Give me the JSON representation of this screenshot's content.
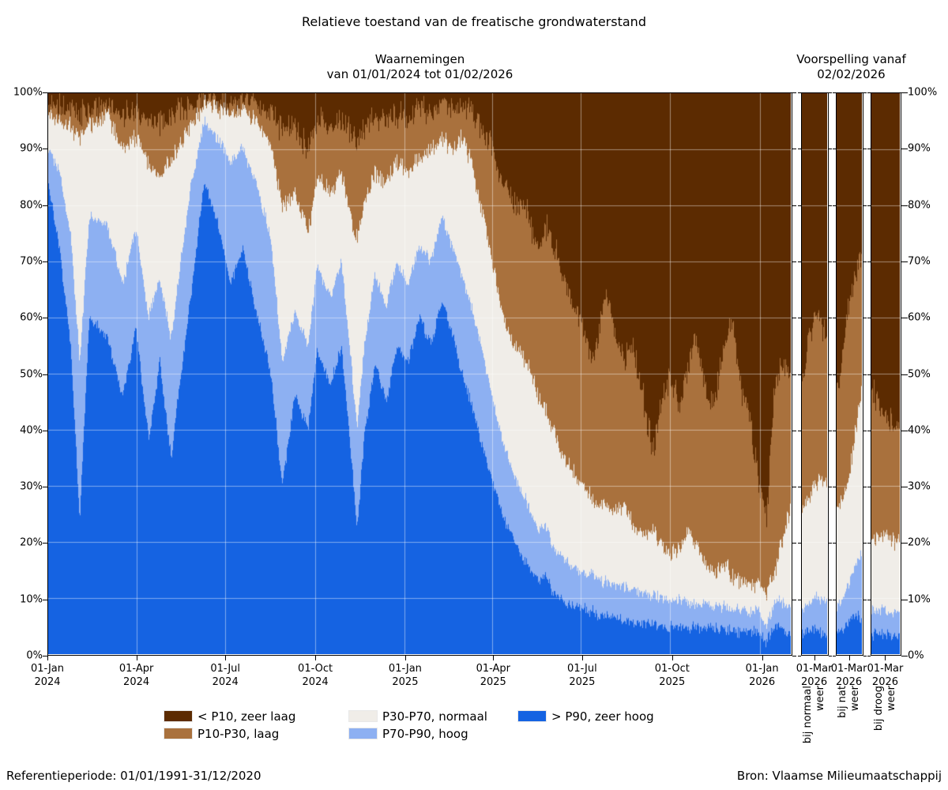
{
  "title": "Relatieve toestand van de freatische grondwaterstand",
  "headers": {
    "observations_line1": "Waarnemingen",
    "observations_line2": "van 01/01/2024 tot 01/02/2026",
    "forecast_line1": "Voorspelling vanaf",
    "forecast_line2": "02/02/2026"
  },
  "footer": {
    "left": "Referentieperiode: 01/01/1991-31/12/2020",
    "right": "Bron: Vlaamse Milieumaatschappij"
  },
  "legend": [
    {
      "label": "< P10, zeer laag",
      "color": "#5c2b01"
    },
    {
      "label": "P10-P30, laag",
      "color": "#a9713d"
    },
    {
      "label": "P30-P70, normaal",
      "color": "#f0ede8"
    },
    {
      "label": "P70-P90, hoog",
      "color": "#8db0f2"
    },
    {
      "label": "> P90, zeer hoog",
      "color": "#1563e2"
    }
  ],
  "axes": {
    "y_tick_labels": [
      "100%",
      "90%",
      "80%",
      "70%",
      "60%",
      "50%",
      "40%",
      "30%",
      "20%",
      "10%",
      "0%"
    ],
    "x_ticks_main": [
      {
        "t": 0.0,
        "line1": "01-Jan",
        "line2": "2024"
      },
      {
        "t": 0.1194,
        "line1": "01-Apr",
        "line2": "2024"
      },
      {
        "t": 0.2388,
        "line1": "01-Jul",
        "line2": "2024"
      },
      {
        "t": 0.3596,
        "line1": "01-Oct",
        "line2": "2024"
      },
      {
        "t": 0.4803,
        "line1": "01-Jan",
        "line2": "2025"
      },
      {
        "t": 0.5984,
        "line1": "01-Apr",
        "line2": "2025"
      },
      {
        "t": 0.7178,
        "line1": "01-Jul",
        "line2": "2025"
      },
      {
        "t": 0.8386,
        "line1": "01-Oct",
        "line2": "2025"
      },
      {
        "t": 0.9593,
        "line1": "01-Jan",
        "line2": "2026"
      }
    ],
    "x_tick_forecast": {
      "t": 0.474,
      "line1": "01-Mar",
      "line2": "2026"
    }
  },
  "forecast_axis_labels": [
    {
      "line1": "bij normaal",
      "line2": "weer"
    },
    {
      "line1": "bij nat",
      "line2": "weer"
    },
    {
      "line1": "bij droog",
      "line2": "weer"
    }
  ],
  "chart_data": {
    "type": "area",
    "unit": "percent of monitoring wells",
    "ylim": [
      0,
      100
    ],
    "grid": true,
    "stack_order_bottom_to_top": [
      "> P90, zeer hoog",
      "P70-P90, hoog",
      "P30-P70, normaal",
      "P10-P30, laag",
      "< P10, zeer laag"
    ],
    "stack_colors_bottom_to_top": [
      "#1563e2",
      "#8db0f2",
      "#f0ede8",
      "#a9713d",
      "#5c2b01"
    ],
    "boundaries_note": "keyframes are [t, b1, b2, b3, b4] = cumulative % tops of blue, light-blue, white, light-brown; dark brown fills b4..100; t is fraction of panel time range",
    "observations": {
      "date_range": [
        "01/01/2024",
        "01/02/2026"
      ],
      "keyframes": [
        [
          0.0,
          84,
          90,
          96,
          98
        ],
        [
          0.015,
          72,
          86,
          95,
          97.5
        ],
        [
          0.03,
          55,
          75,
          94,
          97
        ],
        [
          0.042,
          24,
          52,
          92,
          96
        ],
        [
          0.055,
          60,
          78,
          94,
          97
        ],
        [
          0.08,
          56,
          76,
          96,
          98
        ],
        [
          0.1,
          46,
          66,
          90,
          96
        ],
        [
          0.118,
          58,
          76,
          92,
          97
        ],
        [
          0.135,
          38,
          60,
          87,
          95.5
        ],
        [
          0.15,
          52,
          67,
          85,
          95
        ],
        [
          0.165,
          35,
          56,
          88,
          96
        ],
        [
          0.19,
          62,
          82,
          94,
          97.5
        ],
        [
          0.21,
          84,
          95,
          98,
          99
        ],
        [
          0.228,
          77,
          92,
          97.5,
          98.8
        ],
        [
          0.245,
          66,
          88,
          96,
          98.5
        ],
        [
          0.262,
          72,
          90,
          97,
          99
        ],
        [
          0.28,
          61,
          84,
          95,
          98
        ],
        [
          0.3,
          50,
          74,
          91,
          97
        ],
        [
          0.315,
          30,
          52,
          80,
          93
        ],
        [
          0.332,
          46,
          61,
          82,
          94
        ],
        [
          0.35,
          40,
          55,
          75,
          90
        ],
        [
          0.362,
          54,
          69,
          85,
          95
        ],
        [
          0.38,
          48,
          64,
          82,
          94
        ],
        [
          0.395,
          55,
          70,
          86,
          95
        ],
        [
          0.408,
          35,
          52,
          78,
          93
        ],
        [
          0.416,
          22,
          40,
          74,
          92
        ],
        [
          0.425,
          38,
          54,
          80,
          94
        ],
        [
          0.44,
          52,
          68,
          86,
          96
        ],
        [
          0.455,
          45,
          62,
          84,
          95
        ],
        [
          0.47,
          55,
          70,
          88,
          96
        ],
        [
          0.485,
          52,
          66,
          86,
          96
        ],
        [
          0.5,
          60,
          73,
          88,
          97
        ],
        [
          0.515,
          55,
          70,
          90,
          97
        ],
        [
          0.53,
          63,
          78,
          92,
          98
        ],
        [
          0.545,
          57,
          72,
          90,
          97
        ],
        [
          0.557,
          50,
          68,
          92,
          98
        ],
        [
          0.57,
          45,
          62,
          88,
          97
        ],
        [
          0.583,
          38,
          55,
          80,
          94
        ],
        [
          0.598,
          31,
          46,
          70,
          90
        ],
        [
          0.612,
          25,
          38,
          60,
          84
        ],
        [
          0.627,
          20,
          32,
          55,
          80
        ],
        [
          0.645,
          16,
          27,
          52,
          79
        ],
        [
          0.66,
          13,
          22,
          46,
          72
        ],
        [
          0.67,
          14,
          23,
          44,
          76
        ],
        [
          0.68,
          11,
          19,
          40,
          74
        ],
        [
          0.695,
          9.5,
          17,
          35,
          66
        ],
        [
          0.71,
          8.5,
          15,
          32,
          62
        ],
        [
          0.722,
          8,
          14.5,
          30,
          58
        ],
        [
          0.733,
          7.5,
          14,
          28,
          52
        ],
        [
          0.742,
          7,
          13,
          26,
          57
        ],
        [
          0.752,
          7,
          13,
          27,
          65
        ],
        [
          0.762,
          6.5,
          12.5,
          25,
          58
        ],
        [
          0.775,
          6,
          12,
          27,
          52
        ],
        [
          0.785,
          6,
          11.5,
          24,
          56
        ],
        [
          0.8,
          5.5,
          11,
          21,
          47
        ],
        [
          0.815,
          5.5,
          10.5,
          22,
          36
        ],
        [
          0.825,
          5,
          10,
          20,
          45
        ],
        [
          0.838,
          5,
          10,
          18,
          50
        ],
        [
          0.85,
          5,
          9.5,
          19,
          44
        ],
        [
          0.862,
          4.8,
          9.5,
          22,
          52
        ],
        [
          0.872,
          4.8,
          9,
          20,
          57
        ],
        [
          0.885,
          4.5,
          9,
          16,
          48
        ],
        [
          0.897,
          4.5,
          8.5,
          15,
          44
        ],
        [
          0.91,
          4.2,
          8.5,
          16,
          55
        ],
        [
          0.922,
          4.2,
          8,
          14,
          60
        ],
        [
          0.932,
          4,
          8,
          13,
          48
        ],
        [
          0.945,
          4,
          7.5,
          13,
          43
        ],
        [
          0.958,
          3.8,
          7.5,
          12,
          30
        ],
        [
          0.968,
          2,
          5,
          11,
          24
        ],
        [
          0.978,
          5,
          9,
          14,
          46
        ],
        [
          0.988,
          4.5,
          9.5,
          20,
          52
        ],
        [
          1.0,
          3.5,
          8,
          26,
          50
        ]
      ]
    },
    "forecasts": [
      {
        "label": "bij normaal weer",
        "keyframes": [
          [
            0.0,
            3.5,
            8,
            26,
            48
          ],
          [
            0.3,
            4,
            9,
            28,
            57
          ],
          [
            0.5,
            4.5,
            10,
            30,
            60
          ],
          [
            0.7,
            4,
            10,
            31,
            59
          ],
          [
            1.0,
            3.5,
            9.5,
            30,
            57
          ]
        ]
      },
      {
        "label": "bij nat weer",
        "keyframes": [
          [
            0.0,
            3.5,
            8,
            26,
            47
          ],
          [
            0.25,
            4.5,
            10,
            28,
            54
          ],
          [
            0.5,
            6,
            13,
            32,
            62
          ],
          [
            0.75,
            7,
            16,
            40,
            68
          ],
          [
            1.0,
            6.5,
            18,
            47,
            70
          ]
        ]
      },
      {
        "label": "bij droog weer",
        "keyframes": [
          [
            0.0,
            3.5,
            8,
            21,
            48
          ],
          [
            0.2,
            3.8,
            8,
            20.5,
            44
          ],
          [
            0.5,
            3.5,
            8,
            20.5,
            42
          ],
          [
            0.8,
            3.2,
            7.5,
            20,
            41
          ],
          [
            1.0,
            3.2,
            7.5,
            20,
            40
          ]
        ]
      }
    ],
    "noise": {
      "amplitudes": [
        1.3,
        1.3,
        2.0,
        3.0
      ],
      "seed": 7
    },
    "grid_color": "rgba(255,255,255,0.45)"
  },
  "layout_colors": {
    "spine": "#000000"
  }
}
